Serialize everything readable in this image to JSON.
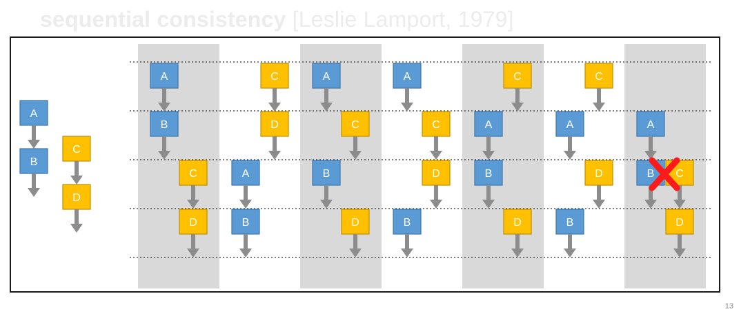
{
  "slide": {
    "title_bold": "sequential consistency",
    "title_citation": "[Leslie Lamport, 1979]",
    "page_number": "13"
  },
  "colors": {
    "blue_fill": "#5b9bd5",
    "blue_stroke": "#3e74ab",
    "yellow_fill": "#ffc000",
    "yellow_stroke": "#c08f00",
    "arrow": "#8c8c8c",
    "highlight": "#d9d9d9",
    "cross": "#ff1a1a"
  },
  "programs": [
    {
      "ops": [
        "A",
        "B"
      ],
      "color": "blue"
    },
    {
      "ops": [
        "C",
        "D"
      ],
      "color": "yellow"
    }
  ],
  "interleavings": [
    {
      "rows": [
        {
          "blue": "A"
        },
        {
          "blue": "B"
        },
        {
          "yellow": "C"
        },
        {
          "yellow": "D"
        }
      ],
      "highlighted": true,
      "valid": true
    },
    {
      "rows": [
        {
          "yellow": "C"
        },
        {
          "yellow": "D"
        },
        {
          "blue": "A"
        },
        {
          "blue": "B"
        }
      ],
      "highlighted": false,
      "valid": true
    },
    {
      "rows": [
        {
          "blue": "A"
        },
        {
          "yellow": "C"
        },
        {
          "blue": "B"
        },
        {
          "yellow": "D"
        }
      ],
      "highlighted": true,
      "valid": true
    },
    {
      "rows": [
        {
          "blue": "A"
        },
        {
          "yellow": "C"
        },
        {
          "yellow": "D"
        },
        {
          "blue": "B"
        }
      ],
      "highlighted": false,
      "valid": true
    },
    {
      "rows": [
        {
          "yellow": "C"
        },
        {
          "blue": "A"
        },
        {
          "blue": "B"
        },
        {
          "yellow": "D"
        }
      ],
      "highlighted": true,
      "valid": true
    },
    {
      "rows": [
        {
          "yellow": "C"
        },
        {
          "blue": "A"
        },
        {
          "yellow": "D"
        },
        {
          "blue": "B"
        }
      ],
      "highlighted": false,
      "valid": true
    },
    {
      "rows": [
        {},
        {
          "blue": "A"
        },
        {
          "blue": "B",
          "yellow": "C"
        },
        {
          "yellow": "D"
        }
      ],
      "highlighted": true,
      "valid": false
    }
  ]
}
